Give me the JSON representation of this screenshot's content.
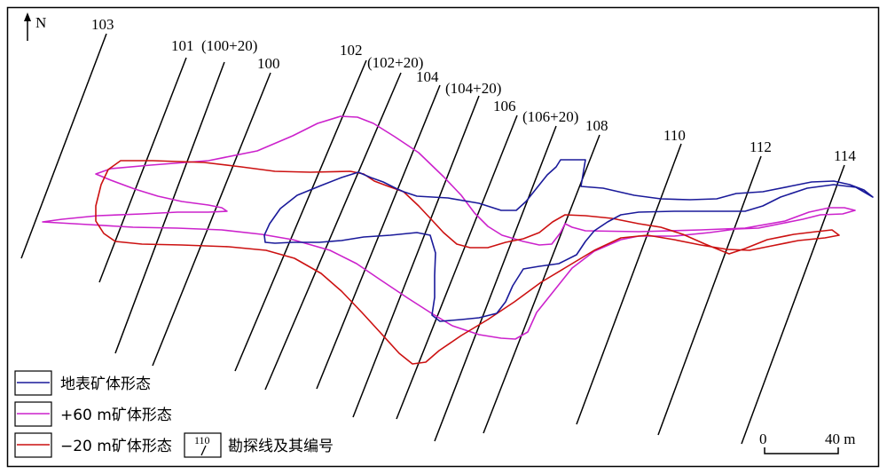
{
  "north_label": "N",
  "colors": {
    "surface": "#1a1a9a",
    "plus60": "#cc22cc",
    "minus20": "#cc1111",
    "line": "#000000"
  },
  "survey_lines": [
    {
      "label": "103"
    },
    {
      "label": "101"
    },
    {
      "label": "(100+20)"
    },
    {
      "label": "100"
    },
    {
      "label": "102"
    },
    {
      "label": "(102+20)"
    },
    {
      "label": "104"
    },
    {
      "label": "(104+20)"
    },
    {
      "label": "106"
    },
    {
      "label": "(106+20)"
    },
    {
      "label": "108"
    },
    {
      "label": "110"
    },
    {
      "label": "112"
    },
    {
      "label": "114"
    }
  ],
  "legend": {
    "surface": "地表矿体形态",
    "plus60": "+60 m矿体形态",
    "minus20": "−20 m矿体形态",
    "line_sample": "110",
    "line_desc": "勘探线及其编号"
  },
  "scale": {
    "zero": "0",
    "end": "40 m"
  }
}
